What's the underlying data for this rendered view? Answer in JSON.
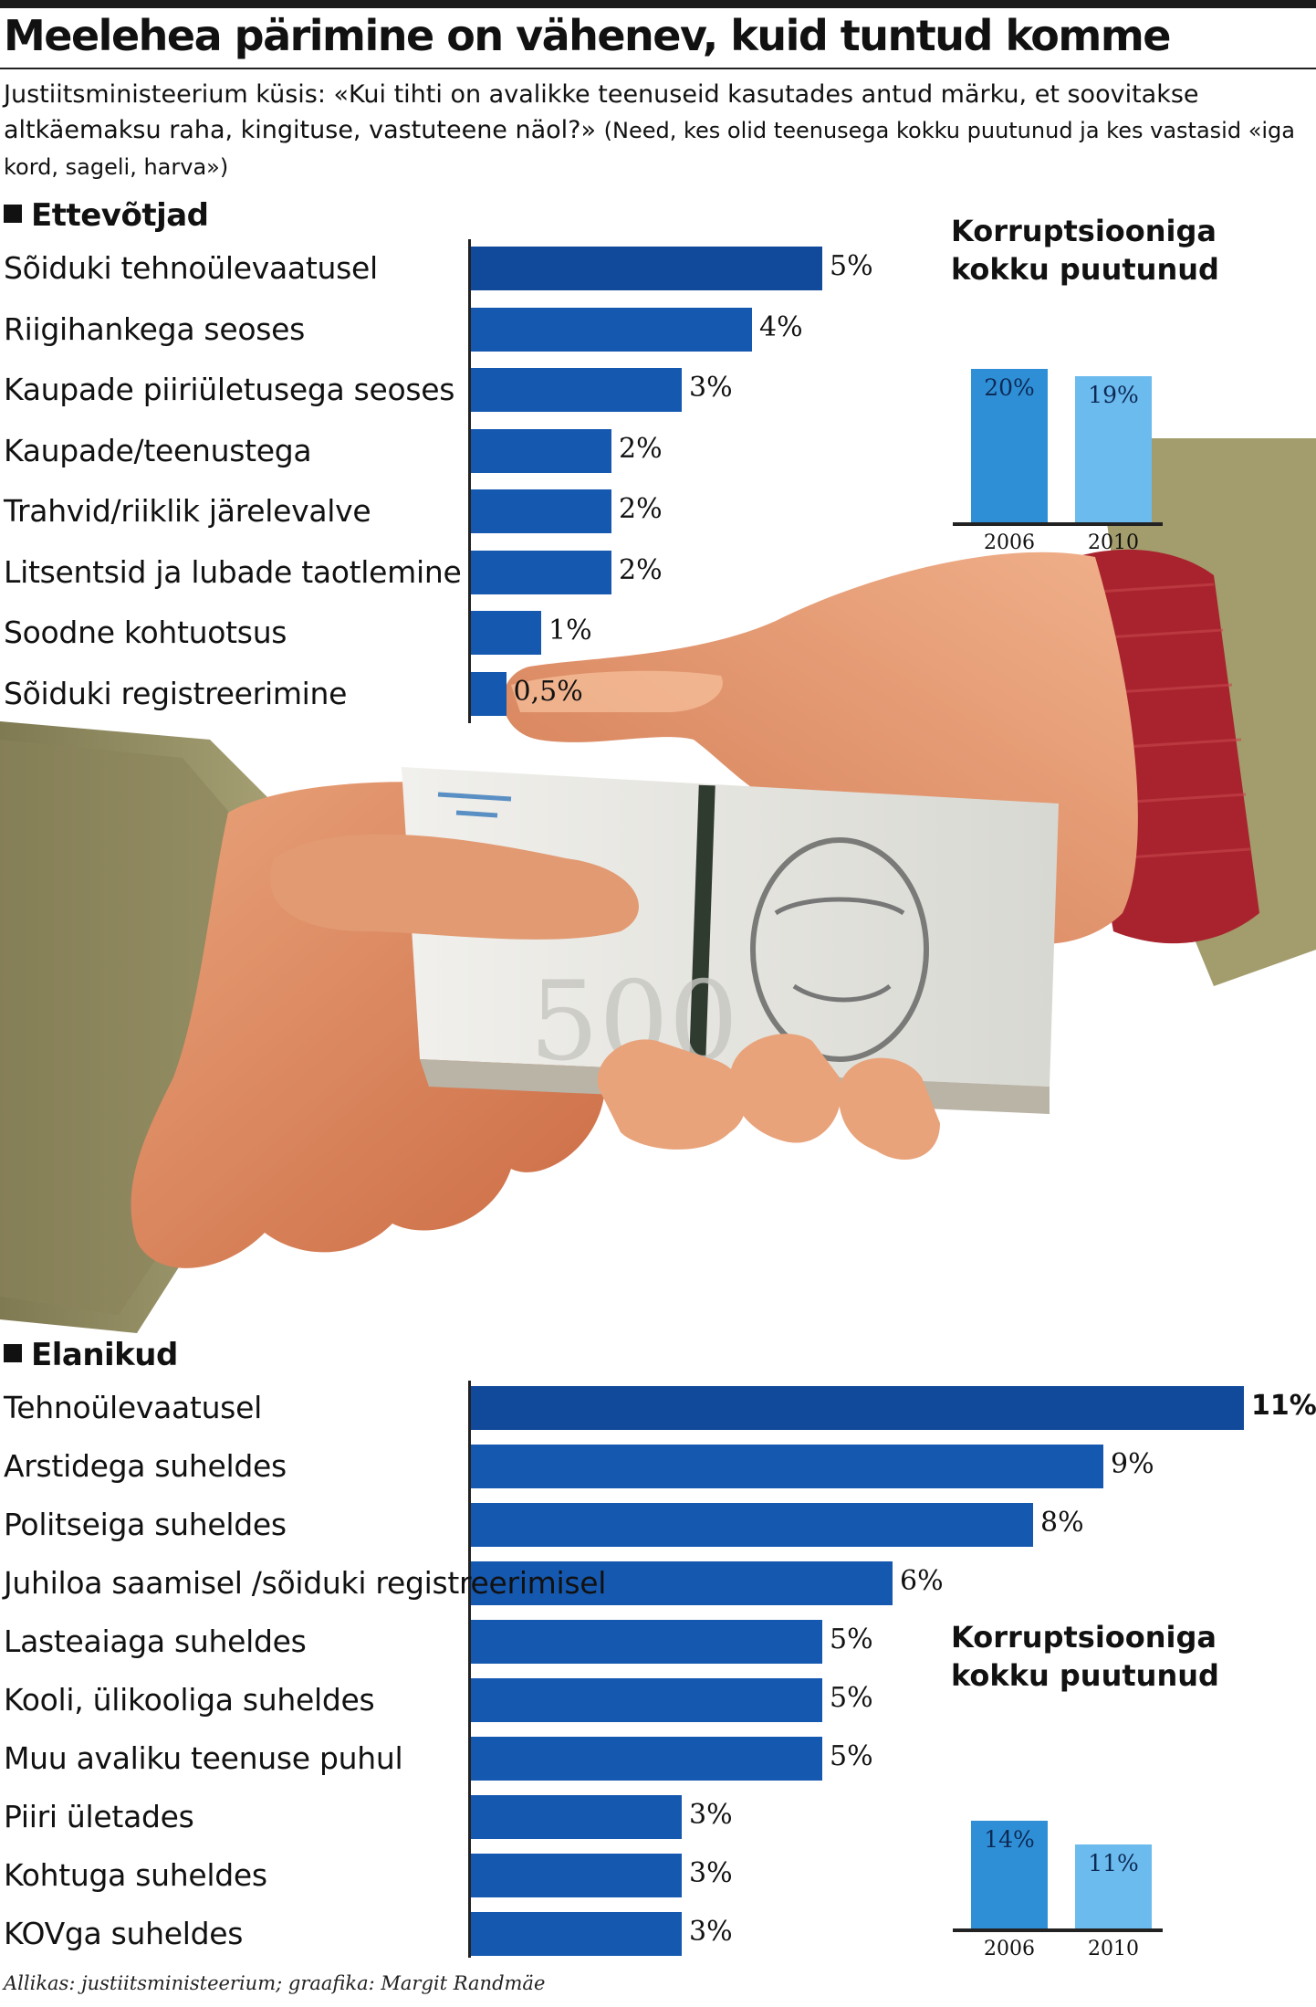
{
  "header": {
    "title": "Meelehea pärimine on vähenev, kuid tuntud komme",
    "question": "Justiitsministeerium küsis: «Kui tihti on avalikke teenuseid kasutades antud märku, et soovitakse altkäemaksu raha, kingituse, vastuteene näol?»",
    "question_note": "(Need, kes olid teenusega kokku puutunud ja kes vastasid «iga kord, sageli, harva»)"
  },
  "source": "Allikas: justiitsministeerium; graafika: Margit Randmäe",
  "colors": {
    "bar": "#1558b0",
    "bar_top": "#114a9b",
    "inset_2006": "#2f8fd6",
    "inset_2010": "#6cbbef"
  },
  "photo_subject": "two-hands-passing-banknotes",
  "chart_data": [
    {
      "type": "bar",
      "orientation": "horizontal",
      "title": "Ettevõtjad",
      "categories": [
        "Sõiduki tehnoülevaatusel",
        "Riigihankega seoses",
        "Kaupade piiriületusega seoses",
        "Kaupade/teenustega",
        "Trahvid/riiklik järelevalve",
        "Litsentsid ja lubade taotlemine",
        "Soodne kohtuotsus",
        "Sõiduki registreerimine"
      ],
      "values": [
        5,
        4,
        3,
        2,
        2,
        2,
        1,
        0.5
      ],
      "value_labels": [
        "5%",
        "4%",
        "3%",
        "2%",
        "2%",
        "2%",
        "1%",
        "0,5%"
      ],
      "xlim": [
        0,
        11
      ]
    },
    {
      "type": "bar",
      "orientation": "vertical",
      "title": "Korruptsiooniga kokku puutunud",
      "categories": [
        "2006",
        "2010"
      ],
      "values": [
        20,
        19
      ],
      "value_labels": [
        "20%",
        "19%"
      ],
      "ylim": [
        0,
        20
      ]
    },
    {
      "type": "bar",
      "orientation": "horizontal",
      "title": "Elanikud",
      "categories": [
        "Tehnoülevaatusel",
        "Arstidega suheldes",
        "Politseiga suheldes",
        "Juhiloa saamisel /sõiduki registreerimisel",
        "Lasteaiaga suheldes",
        "Kooli, ülikooliga suheldes",
        "Muu avaliku teenuse puhul",
        "Piiri ületades",
        "Kohtuga suheldes",
        "KOVga suheldes"
      ],
      "values": [
        11,
        9,
        8,
        6,
        5,
        5,
        5,
        3,
        3,
        3
      ],
      "value_labels": [
        "11%",
        "9%",
        "8%",
        "6%",
        "5%",
        "5%",
        "5%",
        "3%",
        "3%",
        "3%"
      ],
      "xlim": [
        0,
        11
      ]
    },
    {
      "type": "bar",
      "orientation": "vertical",
      "title": "Korruptsiooniga kokku puutunud",
      "categories": [
        "2006",
        "2010"
      ],
      "values": [
        14,
        11
      ],
      "value_labels": [
        "14%",
        "11%"
      ],
      "ylim": [
        0,
        20
      ]
    }
  ]
}
